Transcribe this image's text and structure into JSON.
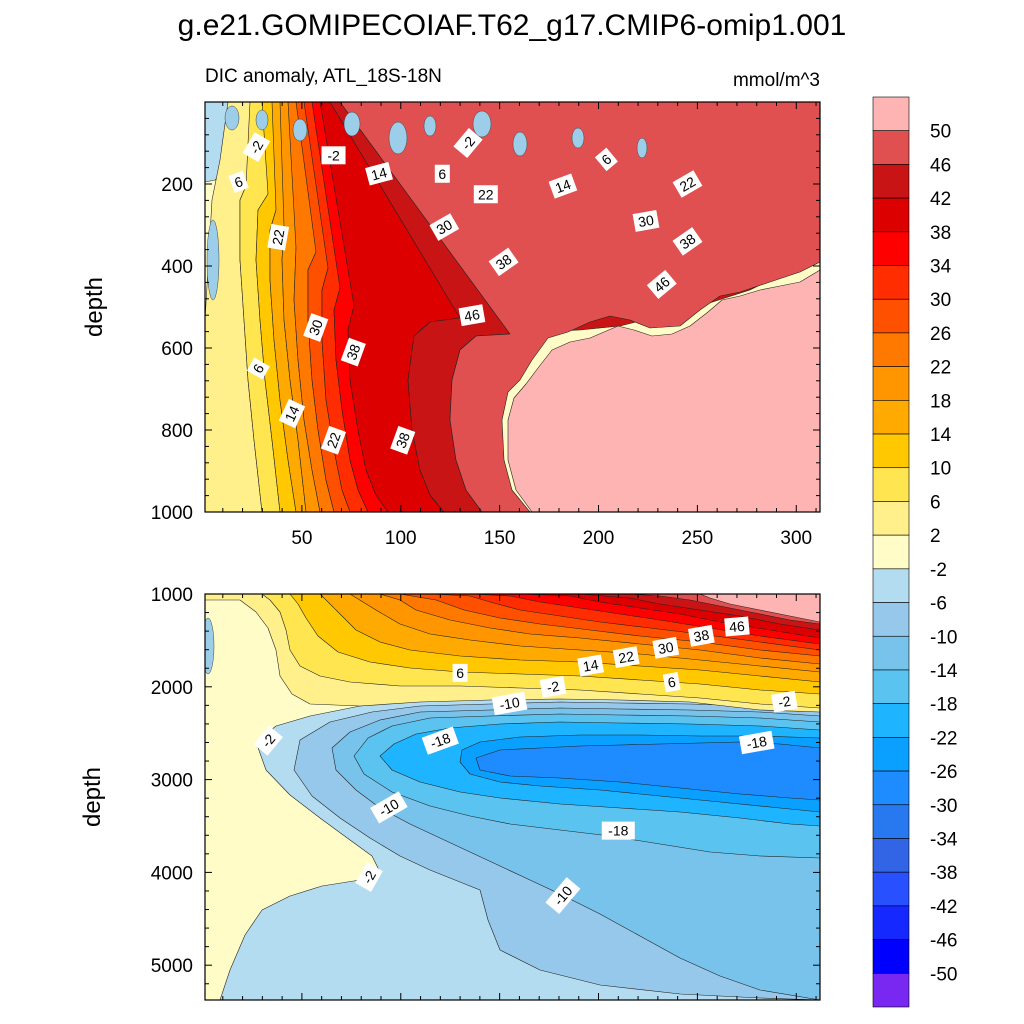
{
  "figure": {
    "title": "g.e21.GOMIPECOIAF.T62_g17.CMIP6-omip1.001",
    "left_string": "DIC anomaly, ATL_18S-18N",
    "right_string": "mmol/m^3"
  },
  "chart_data": [
    {
      "type": "contour",
      "name": "upper panel",
      "xlabel": "",
      "ylabel": "depth",
      "xlim": [
        1,
        312
      ],
      "ylim": [
        1000,
        0
      ],
      "xticks": [
        50,
        100,
        150,
        200,
        250,
        300
      ],
      "xtick_labels": [
        "50",
        "100",
        "150",
        "200",
        "250",
        "300"
      ],
      "yticks": [
        200,
        400,
        600,
        800,
        1000
      ],
      "ytick_labels": [
        "200",
        "400",
        "600",
        "800",
        "1000"
      ],
      "contour_labels": [
        {
          "text": "-2",
          "x": 27,
          "y": 110,
          "angle": -60
        },
        {
          "text": "-2",
          "x": 66,
          "y": 130,
          "angle": 0
        },
        {
          "text": "-2",
          "x": 134,
          "y": 100,
          "angle": -50
        },
        {
          "text": "6",
          "x": 18,
          "y": 195,
          "angle": -20
        },
        {
          "text": "6",
          "x": 121,
          "y": 175,
          "angle": 0
        },
        {
          "text": "6",
          "x": 204,
          "y": 140,
          "angle": -40
        },
        {
          "text": "14",
          "x": 89,
          "y": 175,
          "angle": -15
        },
        {
          "text": "14",
          "x": 182,
          "y": 205,
          "angle": -20
        },
        {
          "text": "22",
          "x": 38,
          "y": 330,
          "angle": -80
        },
        {
          "text": "22",
          "x": 143,
          "y": 225,
          "angle": 0
        },
        {
          "text": "22",
          "x": 245,
          "y": 200,
          "angle": -30
        },
        {
          "text": "30",
          "x": 122,
          "y": 305,
          "angle": -30
        },
        {
          "text": "30",
          "x": 224,
          "y": 290,
          "angle": -10
        },
        {
          "text": "30",
          "x": 57,
          "y": 550,
          "angle": -70
        },
        {
          "text": "38",
          "x": 152,
          "y": 390,
          "angle": -35
        },
        {
          "text": "38",
          "x": 245,
          "y": 340,
          "angle": -35
        },
        {
          "text": "38",
          "x": 76,
          "y": 610,
          "angle": -70
        },
        {
          "text": "38",
          "x": 101,
          "y": 825,
          "angle": -70
        },
        {
          "text": "46",
          "x": 136,
          "y": 520,
          "angle": -10
        },
        {
          "text": "46",
          "x": 232,
          "y": 445,
          "angle": -40
        },
        {
          "text": "6",
          "x": 28,
          "y": 650,
          "angle": -60
        },
        {
          "text": "14",
          "x": 45,
          "y": 760,
          "angle": -65
        },
        {
          "text": "22",
          "x": 66,
          "y": 825,
          "angle": -70
        }
      ]
    },
    {
      "type": "contour",
      "name": "lower panel",
      "xlabel": "",
      "ylabel": "depth",
      "xlim": [
        1,
        312
      ],
      "ylim": [
        5375,
        1000
      ],
      "yticks": [
        1000,
        2000,
        3000,
        4000,
        5000
      ],
      "ytick_labels": [
        "1000",
        "2000",
        "3000",
        "4000",
        "5000"
      ],
      "contour_labels": [
        {
          "text": "46",
          "x": 270,
          "y": 1350,
          "angle": -5
        },
        {
          "text": "38",
          "x": 252,
          "y": 1450,
          "angle": -10
        },
        {
          "text": "30",
          "x": 234,
          "y": 1580,
          "angle": -10
        },
        {
          "text": "22",
          "x": 214,
          "y": 1680,
          "angle": -10
        },
        {
          "text": "14",
          "x": 196,
          "y": 1770,
          "angle": -10
        },
        {
          "text": "6",
          "x": 130,
          "y": 1850,
          "angle": 0
        },
        {
          "text": "6",
          "x": 237,
          "y": 1950,
          "angle": -10
        },
        {
          "text": "-2",
          "x": 177,
          "y": 2000,
          "angle": -10
        },
        {
          "text": "-2",
          "x": 294,
          "y": 2160,
          "angle": -10
        },
        {
          "text": "-10",
          "x": 155,
          "y": 2180,
          "angle": -10
        },
        {
          "text": "-10",
          "x": 94,
          "y": 3300,
          "angle": -30
        },
        {
          "text": "-10",
          "x": 182,
          "y": 4250,
          "angle": -50
        },
        {
          "text": "-18",
          "x": 120,
          "y": 2580,
          "angle": -20
        },
        {
          "text": "-18",
          "x": 280,
          "y": 2600,
          "angle": -10
        },
        {
          "text": "-18",
          "x": 210,
          "y": 3550,
          "angle": 0
        },
        {
          "text": "-2",
          "x": 33,
          "y": 2580,
          "angle": -50
        },
        {
          "text": "-2",
          "x": 84,
          "y": 4050,
          "angle": -60
        }
      ]
    }
  ],
  "colorbar": {
    "levels": [
      "50",
      "46",
      "42",
      "38",
      "34",
      "30",
      "26",
      "22",
      "18",
      "14",
      "10",
      "6",
      "2",
      "-2",
      "-6",
      "-10",
      "-14",
      "-18",
      "-22",
      "-26",
      "-30",
      "-34",
      "-38",
      "-42",
      "-46",
      "-50"
    ],
    "colors": [
      "#ffb4b4",
      "#e15050",
      "#c81414",
      "#dc0000",
      "#ff0000",
      "#ff2d00",
      "#ff5000",
      "#ff7800",
      "#ff9600",
      "#ffaa00",
      "#ffc800",
      "#ffe650",
      "#fff08c",
      "#fffcc8",
      "#b4dcf0",
      "#96c8eb",
      "#78c3eb",
      "#5ac3f0",
      "#1eb4ff",
      "#0aa0ff",
      "#1e8cff",
      "#2878f0",
      "#3264e6",
      "#2850ff",
      "#1428ff",
      "#0000ff",
      "#7828f0"
    ]
  }
}
